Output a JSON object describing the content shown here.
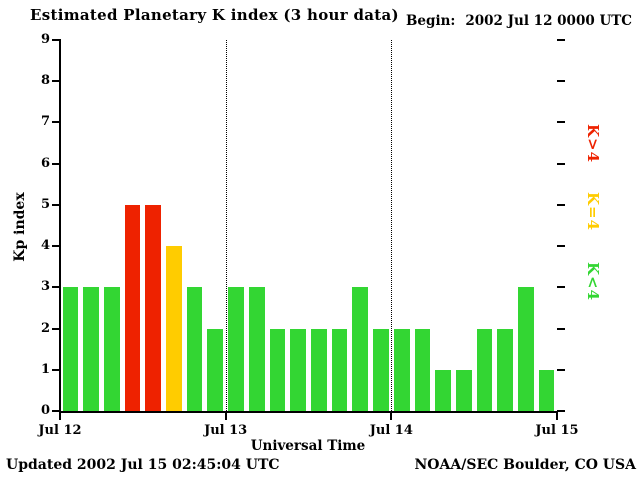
{
  "header": {
    "begin_label": "Begin:",
    "begin_value": "2002 Jul 12 0000 UTC"
  },
  "footer": {
    "updated": "Updated 2002 Jul 15 02:45:04 UTC",
    "source": "NOAA/SEC Boulder, CO USA"
  },
  "legend": [
    {
      "label": "K>4",
      "color": "#ee2200"
    },
    {
      "label": "K=4",
      "color": "#ffcc00"
    },
    {
      "label": "K<4",
      "color": "#33d633"
    }
  ],
  "chart_data": {
    "type": "bar",
    "title": "Estimated Planetary K index (3 hour data)",
    "xlabel": "Universal Time",
    "ylabel": "Kp index",
    "ylim": [
      0,
      9
    ],
    "y_ticks": [
      0,
      1,
      2,
      3,
      4,
      5,
      6,
      7,
      8,
      9
    ],
    "x_tick_labels": [
      "Jul 12",
      "Jul 13",
      "Jul 14",
      "Jul 15"
    ],
    "bars_per_day": 8,
    "grid": "dotted vertical lines at day boundaries",
    "legend_position": "right, rotated",
    "values": [
      3,
      3,
      3,
      5,
      5,
      4,
      3,
      2,
      3,
      3,
      2,
      2,
      2,
      2,
      3,
      2,
      2,
      2,
      1,
      1,
      2,
      2,
      3,
      1
    ],
    "color_rule": {
      "gt4": "red",
      "eq4": "yellow",
      "lt4": "green"
    }
  }
}
